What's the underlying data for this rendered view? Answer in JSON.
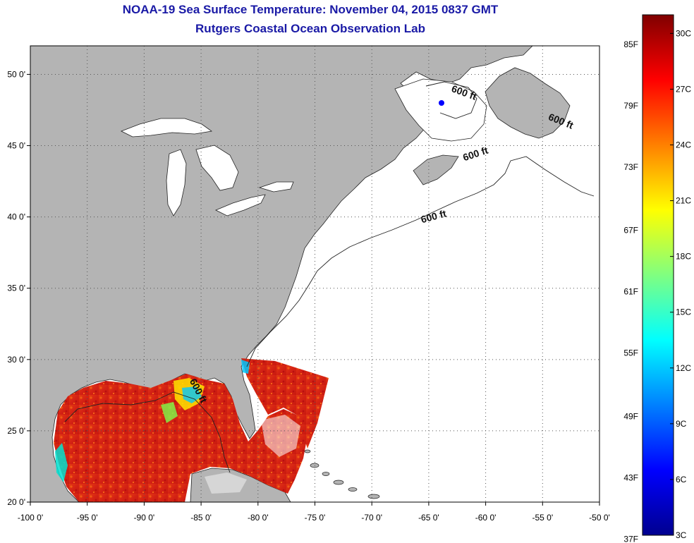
{
  "title": "NOAA-19 Sea Surface Temperature:  November 04, 2015 0837 GMT",
  "subtitle": "Rutgers Coastal Ocean Observation Lab",
  "map": {
    "lon_range": [
      -100,
      -50
    ],
    "lat_range": [
      20,
      52
    ],
    "lon_ticks": [
      {
        "value": -100,
        "label": "-100 0'"
      },
      {
        "value": -95,
        "label": "-95 0'"
      },
      {
        "value": -90,
        "label": "-90 0'"
      },
      {
        "value": -85,
        "label": "-85 0'"
      },
      {
        "value": -80,
        "label": "-80 0'"
      },
      {
        "value": -75,
        "label": "-75 0'"
      },
      {
        "value": -70,
        "label": "-70 0'"
      },
      {
        "value": -65,
        "label": "-65 0'"
      },
      {
        "value": -60,
        "label": "-60 0'"
      },
      {
        "value": -55,
        "label": "-55 0'"
      },
      {
        "value": -50,
        "label": "-50 0'"
      }
    ],
    "lat_ticks": [
      {
        "value": 20,
        "label": "20 0'"
      },
      {
        "value": 25,
        "label": "25 0'"
      },
      {
        "value": 30,
        "label": "30 0'"
      },
      {
        "value": 35,
        "label": "35 0'"
      },
      {
        "value": 40,
        "label": "40 0'"
      },
      {
        "value": 45,
        "label": "45 0'"
      },
      {
        "value": 50,
        "label": "50 0'"
      }
    ],
    "grid": "dotted",
    "land_color": "#b4b4b4",
    "ocean_color": "#ffffff",
    "contour_labels": [
      {
        "text": "600 ft",
        "lon": -64.5,
        "lat": 39.8
      },
      {
        "text": "600 ft",
        "lon": -60.8,
        "lat": 44.2
      },
      {
        "text": "600 ft",
        "lon": -62.0,
        "lat": 48.5
      },
      {
        "text": "600 ft",
        "lon": -53.5,
        "lat": 46.5
      },
      {
        "text": "600 ft",
        "lon": -85.5,
        "lat": 27.7
      }
    ]
  },
  "colorbar": {
    "f_labels": [
      {
        "label": "85F",
        "value_c": 29.4
      },
      {
        "label": "79F",
        "value_c": 26.1
      },
      {
        "label": "73F",
        "value_c": 22.8
      },
      {
        "label": "67F",
        "value_c": 19.4
      },
      {
        "label": "61F",
        "value_c": 16.1
      },
      {
        "label": "55F",
        "value_c": 12.8
      },
      {
        "label": "49F",
        "value_c": 9.4
      },
      {
        "label": "43F",
        "value_c": 6.1
      },
      {
        "label": "37F",
        "value_c": 2.8
      }
    ],
    "c_labels": [
      {
        "label": "30C",
        "value_c": 30
      },
      {
        "label": "27C",
        "value_c": 27
      },
      {
        "label": "24C",
        "value_c": 24
      },
      {
        "label": "21C",
        "value_c": 21
      },
      {
        "label": "18C",
        "value_c": 18
      },
      {
        "label": "15C",
        "value_c": 15
      },
      {
        "label": "12C",
        "value_c": 12
      },
      {
        "label": "9C",
        "value_c": 9
      },
      {
        "label": "6C",
        "value_c": 6
      },
      {
        "label": "3C",
        "value_c": 3
      }
    ],
    "range_c": [
      3,
      31
    ],
    "colors": [
      "#00008f",
      "#0000ff",
      "#0080ff",
      "#00ffff",
      "#80ff80",
      "#ffff00",
      "#ff8000",
      "#ff0000",
      "#800000"
    ]
  }
}
